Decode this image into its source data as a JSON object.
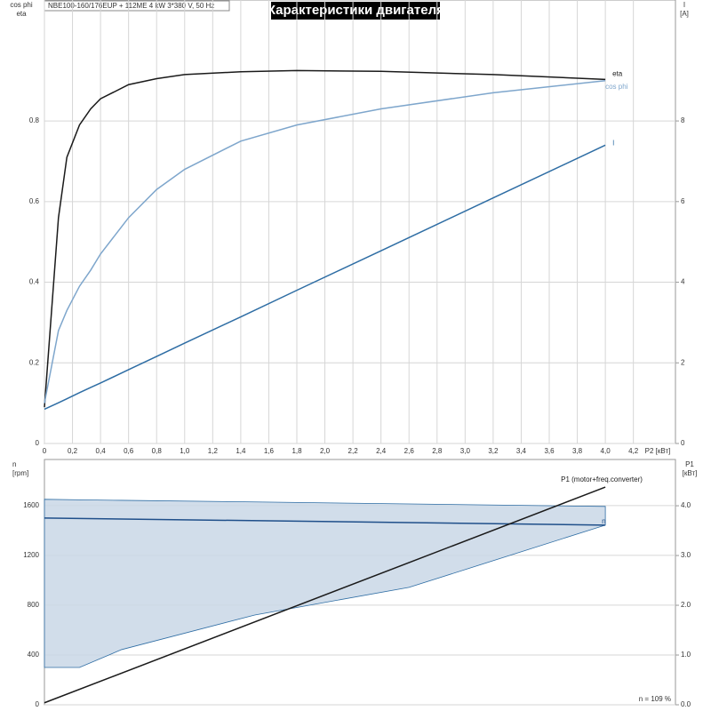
{
  "chart_data": [
    {
      "type": "line",
      "title": "Характеристики двигателя",
      "subtitle": "NBE100-160/176EUP + 112ME  4 kW  3*380 V, 50 Hz",
      "xlabel": "P2 [кВт]",
      "ylabel": [
        "cos phi",
        "eta"
      ],
      "y2label": [
        "I",
        "[A]"
      ],
      "xlim": [
        0,
        4.5
      ],
      "ylim": [
        0,
        1.1
      ],
      "y2lim": [
        0,
        11
      ],
      "xticks": [
        0,
        {
          "value": 0.2,
          "label": "0,2"
        },
        {
          "value": 0.4,
          "label": "0,4"
        },
        {
          "value": 0.6,
          "label": "0,6"
        },
        {
          "value": 0.8,
          "label": "0,8"
        },
        {
          "value": 1.0,
          "label": "1,0"
        },
        {
          "value": 1.2,
          "label": "1,2"
        },
        {
          "value": 1.4,
          "label": "1,4"
        },
        {
          "value": 1.6,
          "label": "1,6"
        },
        {
          "value": 1.8,
          "label": "1,8"
        },
        {
          "value": 2.0,
          "label": "2,0"
        },
        {
          "value": 2.2,
          "label": "2,2"
        },
        {
          "value": 2.4,
          "label": "2,4"
        },
        {
          "value": 2.6,
          "label": "2,6"
        },
        {
          "value": 2.8,
          "label": "2,8"
        },
        {
          "value": 3.0,
          "label": "3,0"
        },
        {
          "value": 3.2,
          "label": "3,2"
        },
        {
          "value": 3.4,
          "label": "3,4"
        },
        {
          "value": 3.6,
          "label": "3,6"
        },
        {
          "value": 3.8,
          "label": "3,8"
        },
        {
          "value": 4.0,
          "label": "4,0"
        },
        {
          "value": 4.2,
          "label": "4,2"
        }
      ],
      "yticks": [
        0,
        0.2,
        0.4,
        0.6,
        0.8
      ],
      "y2ticks": [
        0,
        2,
        4,
        6,
        8
      ],
      "grid": true,
      "series": [
        {
          "name": "eta",
          "color": "#1a1a1a",
          "x": [
            0,
            0.1,
            0.16,
            0.25,
            0.33,
            0.4,
            0.6,
            0.8,
            1.0,
            1.4,
            1.8,
            2.4,
            3.2,
            4.0
          ],
          "values": [
            0.09,
            0.56,
            0.71,
            0.79,
            0.83,
            0.855,
            0.89,
            0.905,
            0.915,
            0.922,
            0.925,
            0.923,
            0.915,
            0.903
          ]
        },
        {
          "name": "cos phi",
          "color": "#7ea6cc",
          "x": [
            0,
            0.1,
            0.16,
            0.25,
            0.33,
            0.4,
            0.6,
            0.8,
            1.0,
            1.4,
            1.8,
            2.4,
            3.2,
            4.0
          ],
          "values": [
            0.1,
            0.28,
            0.33,
            0.39,
            0.43,
            0.47,
            0.56,
            0.63,
            0.68,
            0.75,
            0.79,
            0.83,
            0.87,
            0.9
          ]
        },
        {
          "name": "I",
          "color": "#2e6da4",
          "axis": "y2",
          "x": [
            0,
            0.1,
            0.16,
            0.25,
            0.33,
            0.4,
            0.6,
            0.8,
            1.0,
            1.4,
            1.8,
            2.4,
            3.2,
            4.0
          ],
          "values": [
            0.85,
            1.01,
            1.11,
            1.26,
            1.39,
            1.5,
            1.83,
            2.16,
            2.49,
            3.14,
            3.8,
            4.78,
            6.09,
            7.4
          ]
        }
      ]
    },
    {
      "type": "line",
      "ylabel": [
        "n",
        "[rpm]"
      ],
      "y2label": [
        "P1",
        "[кВт]"
      ],
      "annotation": "n = 109 %",
      "xlim": [
        0,
        4.5
      ],
      "ylim": [
        0,
        1970
      ],
      "y2lim": [
        0,
        4.93
      ],
      "yticks": [
        0,
        400,
        800,
        1200,
        1600
      ],
      "y2ticks": [
        {
          "value": 0,
          "label": "0.0"
        },
        {
          "value": 1,
          "label": "1.0"
        },
        {
          "value": 2,
          "label": "2.0"
        },
        {
          "value": 3,
          "label": "3.0"
        },
        {
          "value": 4,
          "label": "4.0"
        }
      ],
      "grid": true,
      "band": {
        "color": "#c9d7e6",
        "x": [
          0,
          0.25,
          0.55,
          1.5,
          2.6,
          4.0
        ],
        "upper": [
          1650,
          1646,
          1642,
          1629,
          1613,
          1593
        ],
        "lower": [
          300,
          300,
          443,
          721,
          943,
          1443
        ]
      },
      "series": [
        {
          "name": "n",
          "color": "#1f4f8a",
          "x": [
            0,
            4.0
          ],
          "values": [
            1500,
            1443
          ]
        },
        {
          "name": "P1 (motor+freq.converter)",
          "color": "#1a1a1a",
          "axis": "y2",
          "x": [
            0,
            4.0
          ],
          "values": [
            0.04,
            4.375
          ]
        }
      ]
    }
  ]
}
